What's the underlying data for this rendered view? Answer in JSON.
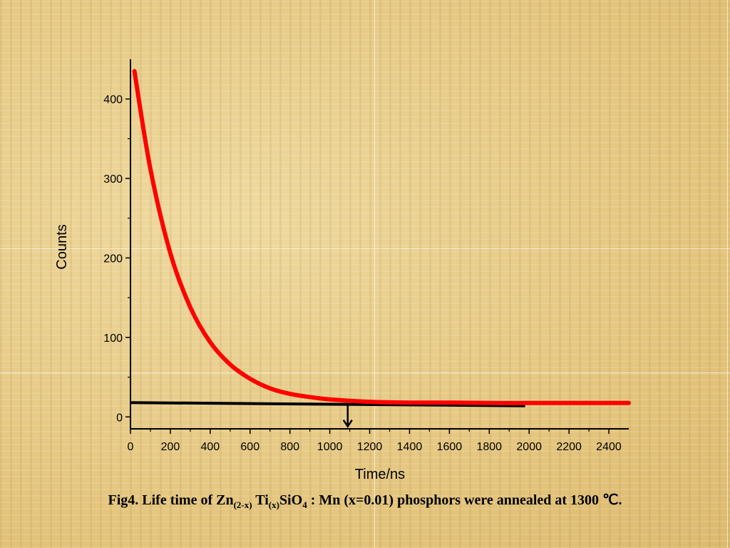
{
  "chart_data": {
    "type": "line",
    "xlabel": "Time/ns",
    "ylabel": "Counts",
    "xlim": [
      0,
      2500
    ],
    "ylim": [
      -15,
      450
    ],
    "x_ticks": [
      0,
      200,
      400,
      600,
      800,
      1000,
      1200,
      1400,
      1600,
      1800,
      2000,
      2200,
      2400
    ],
    "y_ticks": [
      0,
      100,
      200,
      300,
      400
    ],
    "grid": false,
    "series": [
      {
        "color": "#ff0000",
        "x": [
          20,
          100,
          200,
          300,
          400,
          500,
          600,
          700,
          800,
          900,
          1000,
          1200,
          1400,
          1600,
          1800,
          2000,
          2200,
          2500
        ],
        "y": [
          435,
          312,
          206,
          138,
          94,
          66,
          48,
          36,
          29,
          25,
          22,
          19,
          18,
          18,
          17.5,
          17.5,
          17.5,
          17.5
        ]
      }
    ],
    "annotations": {
      "baseline": {
        "x": [
          0,
          1980
        ],
        "y": [
          18,
          14
        ],
        "color": "#000000"
      },
      "arrow": {
        "x": 1090,
        "y_from": 17,
        "y_to": -12,
        "color": "#000000"
      }
    }
  },
  "caption": {
    "prefix": "Fig4. Life time of Zn",
    "sub1": "(2-x)",
    "mid1": " Ti",
    "sub2": "(x)",
    "mid2": "SiO",
    "sub3": "4",
    "suffix": " : Mn (x=0.01) phosphors were annealed at 1300 ℃."
  }
}
